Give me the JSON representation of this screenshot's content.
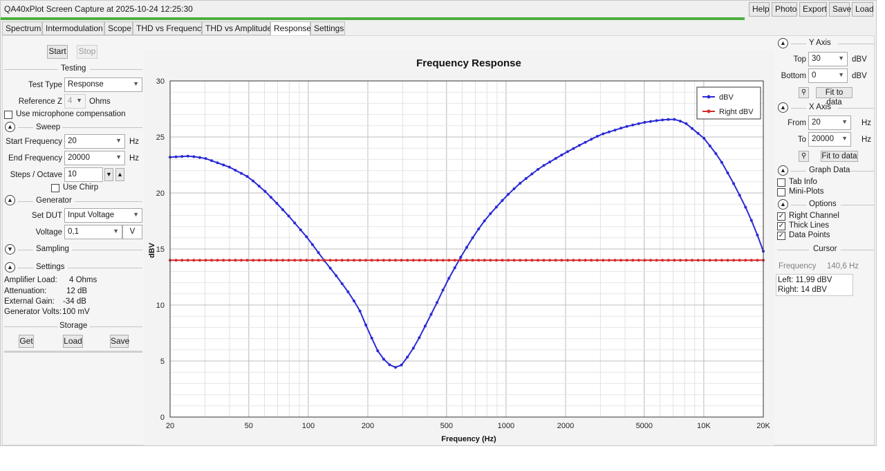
{
  "window": {
    "title": "QA40xPlot Screen Capture at 2025-10-24 12:25:30",
    "buttons": {
      "help": "Help",
      "photo": "Photo",
      "export": "Export",
      "save": "Save",
      "load": "Load"
    },
    "progress_fraction": 0.85,
    "accent_color": "#4caf3f"
  },
  "tabs": [
    "Spectrum",
    "Intermodulation",
    "Scope",
    "THD vs Frequency",
    "THD vs Amplitude",
    "Response",
    "Settings"
  ],
  "active_tab": "Response",
  "left": {
    "start_label": "Start",
    "stop_label": "Stop",
    "testing": {
      "header": "Testing",
      "test_type_label": "Test Type",
      "test_type_value": "Response",
      "ref_z_label": "Reference Z",
      "ref_z_value": "4",
      "ref_z_unit": "Ohms",
      "mic_label": "Use microphone compensation"
    },
    "sweep": {
      "header": "Sweep",
      "start_label": "Start Frequency",
      "start_value": "20",
      "end_label": "End Frequency",
      "end_value": "20000",
      "hz": "Hz",
      "steps_label": "Steps / Octave",
      "steps_value": "10",
      "chirp_label": "Use Chirp"
    },
    "generator": {
      "header": "Generator",
      "set_dut_label": "Set DUT",
      "set_dut_value": "Input Voltage",
      "voltage_label": "Voltage",
      "voltage_value": "0,1",
      "voltage_unit": "V"
    },
    "sampling": {
      "header": "Sampling"
    },
    "settings": {
      "header": "Settings",
      "rows": [
        {
          "label": "Amplifier Load:",
          "value": "4 Ohms"
        },
        {
          "label": "Attenuation:",
          "value": "12 dB"
        },
        {
          "label": "External Gain:",
          "value": "-34 dB"
        },
        {
          "label": "Generator Volts:",
          "value": "100 mV"
        }
      ]
    },
    "storage": {
      "header": "Storage",
      "get": "Get",
      "load": "Load",
      "save": "Save"
    }
  },
  "right": {
    "y_axis": {
      "header": "Y Axis",
      "top_label": "Top",
      "top_value": "30",
      "bottom_label": "Bottom",
      "bottom_value": "0",
      "unit": "dBV",
      "fit": "Fit to data"
    },
    "x_axis": {
      "header": "X Axis",
      "from_label": "From",
      "from_value": "20",
      "to_label": "To",
      "to_value": "20000",
      "unit": "Hz",
      "fit": "Fit to data"
    },
    "graph_data": {
      "header": "Graph Data",
      "tab_info": "Tab Info",
      "mini_plots": "Mini-Plots"
    },
    "options": {
      "header": "Options",
      "right_channel": "Right Channel",
      "thick_lines": "Thick Lines",
      "data_points": "Data Points"
    },
    "cursor": {
      "header": "Cursor",
      "freq_label": "Frequency",
      "freq_value": "140,6 Hz",
      "left_line": "Left: 11,99 dBV",
      "right_line": "Right: 14 dBV"
    }
  },
  "chart_data": {
    "type": "line",
    "title": "Frequency Response",
    "xlabel": "Frequency (Hz)",
    "ylabel": "dBV",
    "x_scale": "log",
    "xlim": [
      20,
      20000
    ],
    "ylim": [
      0,
      30
    ],
    "x_ticks": [
      {
        "v": 20,
        "label": "20"
      },
      {
        "v": 50,
        "label": "50"
      },
      {
        "v": 100,
        "label": "100"
      },
      {
        "v": 200,
        "label": "200"
      },
      {
        "v": 500,
        "label": "500"
      },
      {
        "v": 1000,
        "label": "1000"
      },
      {
        "v": 2000,
        "label": "2000"
      },
      {
        "v": 5000,
        "label": "5000"
      },
      {
        "v": 10000,
        "label": "10K"
      },
      {
        "v": 20000,
        "label": "20K"
      }
    ],
    "y_ticks": [
      0,
      5,
      10,
      15,
      20,
      25,
      30
    ],
    "grid": true,
    "legend_position": "top-right",
    "series": [
      {
        "name": "dBV",
        "color": "#2a2ad6",
        "x": [
          20,
          25,
          30,
          40,
          50,
          60,
          70,
          80,
          100,
          120,
          140,
          160,
          180,
          200,
          230,
          260,
          280,
          300,
          350,
          400,
          450,
          500,
          600,
          700,
          800,
          1000,
          1200,
          1500,
          2000,
          2500,
          3000,
          4000,
          5000,
          6000,
          7000,
          8000,
          10000,
          12000,
          14000,
          16000,
          18000,
          20000
        ],
        "y": [
          23.2,
          23.3,
          23.1,
          22.3,
          21.4,
          20.2,
          19.0,
          17.9,
          15.9,
          14.0,
          12.5,
          11.1,
          9.7,
          7.8,
          5.5,
          4.6,
          4.4,
          4.7,
          6.5,
          8.5,
          10.3,
          12.0,
          14.5,
          16.4,
          17.8,
          19.7,
          21.0,
          22.3,
          23.6,
          24.5,
          25.2,
          25.9,
          26.3,
          26.5,
          26.6,
          26.3,
          24.9,
          23.1,
          21.0,
          19.0,
          17.0,
          14.8
        ]
      },
      {
        "name": "Right dBV",
        "color": "#d62a2a",
        "x": [
          20,
          20000
        ],
        "y": [
          14.0,
          14.0
        ]
      }
    ]
  }
}
